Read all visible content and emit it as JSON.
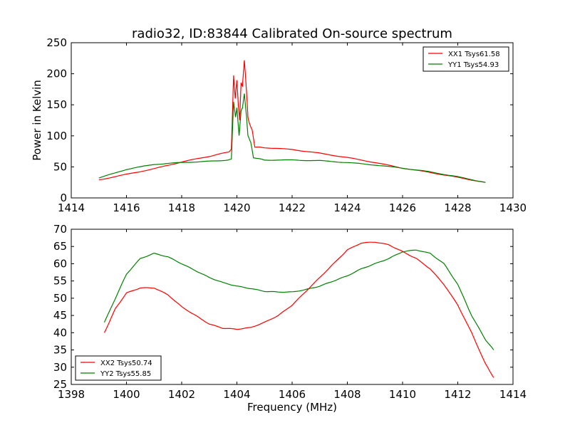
{
  "chart_data": [
    {
      "type": "line",
      "title": "radio32, ID:83844 Calibrated On-source spectrum",
      "xlabel": "",
      "ylabel": "Power in Kelvin",
      "xlim": [
        1414,
        1430
      ],
      "ylim": [
        0,
        250
      ],
      "xticks": [
        1414,
        1416,
        1418,
        1420,
        1422,
        1424,
        1426,
        1428,
        1430
      ],
      "yticks": [
        0,
        50,
        100,
        150,
        200,
        250
      ],
      "legend": "top-right",
      "series": [
        {
          "name": "XX1 Tsys61.58",
          "color": "#ff0000",
          "x": [
            1415,
            1416,
            1417,
            1418,
            1419,
            1419.7,
            1419.8,
            1419.88,
            1419.94,
            1420.0,
            1420.05,
            1420.1,
            1420.15,
            1420.2,
            1420.27,
            1420.35,
            1420.4,
            1420.45,
            1420.55,
            1420.65,
            1421,
            1422,
            1423,
            1424,
            1425,
            1426,
            1427,
            1428,
            1429
          ],
          "y": [
            29,
            38,
            47,
            58,
            67,
            74,
            78,
            197,
            160,
            190,
            150,
            125,
            185,
            180,
            222,
            170,
            130,
            120,
            110,
            82,
            81,
            78,
            72,
            65,
            57,
            48,
            41,
            33,
            25
          ]
        },
        {
          "name": "YY1 Tsys54.93",
          "color": "#008000",
          "x": [
            1415,
            1416,
            1417,
            1418,
            1419,
            1419.7,
            1419.8,
            1419.88,
            1419.95,
            1420.0,
            1420.08,
            1420.15,
            1420.2,
            1420.27,
            1420.35,
            1420.4,
            1420.5,
            1420.6,
            1421,
            1422,
            1423,
            1424,
            1425,
            1426,
            1427,
            1428,
            1429
          ],
          "y": [
            32,
            46,
            54,
            57,
            59,
            61,
            63,
            155,
            130,
            145,
            100,
            140,
            145,
            168,
            130,
            100,
            90,
            65,
            61,
            61,
            60,
            57,
            53,
            48,
            42,
            34,
            25
          ]
        }
      ]
    },
    {
      "type": "line",
      "title": "",
      "xlabel": "Frequency (MHz)",
      "ylabel": "",
      "xlim": [
        1398,
        1414
      ],
      "ylim": [
        25,
        70
      ],
      "xticks": [
        1398,
        1400,
        1402,
        1404,
        1406,
        1408,
        1410,
        1412,
        1414
      ],
      "yticks": [
        25,
        30,
        35,
        40,
        45,
        50,
        55,
        60,
        65,
        70
      ],
      "legend": "bottom-left",
      "series": [
        {
          "name": "XX2 Tsys50.74",
          "color": "#ff0000",
          "x": [
            1399.2,
            1399.6,
            1400,
            1400.5,
            1401,
            1401.5,
            1402,
            1402.5,
            1403,
            1403.5,
            1404,
            1404.5,
            1405,
            1405.5,
            1406,
            1406.5,
            1407,
            1407.5,
            1408,
            1408.5,
            1409,
            1409.5,
            1410,
            1410.5,
            1411,
            1411.5,
            1412,
            1412.5,
            1413,
            1413.3
          ],
          "y": [
            40,
            47,
            51.5,
            53,
            53,
            51,
            47.5,
            45,
            42.5,
            41.3,
            41,
            41.5,
            43,
            45,
            48,
            52,
            56,
            60,
            64,
            66,
            66.3,
            65.5,
            63.5,
            61.5,
            58.5,
            54,
            48,
            40,
            31,
            27
          ]
        },
        {
          "name": "YY2 Tsys55.85",
          "color": "#008000",
          "x": [
            1399.2,
            1399.6,
            1400,
            1400.5,
            1401,
            1401.5,
            1402,
            1402.5,
            1403,
            1403.5,
            1404,
            1404.5,
            1405,
            1405.5,
            1406,
            1406.5,
            1407,
            1407.5,
            1408,
            1408.5,
            1409,
            1409.5,
            1410,
            1410.5,
            1411,
            1411.5,
            1412,
            1412.5,
            1413,
            1413.3
          ],
          "y": [
            43,
            50,
            57,
            61.5,
            63,
            62,
            60,
            58,
            56,
            54.5,
            53.5,
            52.8,
            52,
            51.8,
            51.8,
            52.5,
            53.5,
            55,
            56.5,
            58.5,
            60,
            61.5,
            63.5,
            64,
            63,
            60,
            54,
            45,
            38,
            35
          ]
        }
      ]
    }
  ]
}
